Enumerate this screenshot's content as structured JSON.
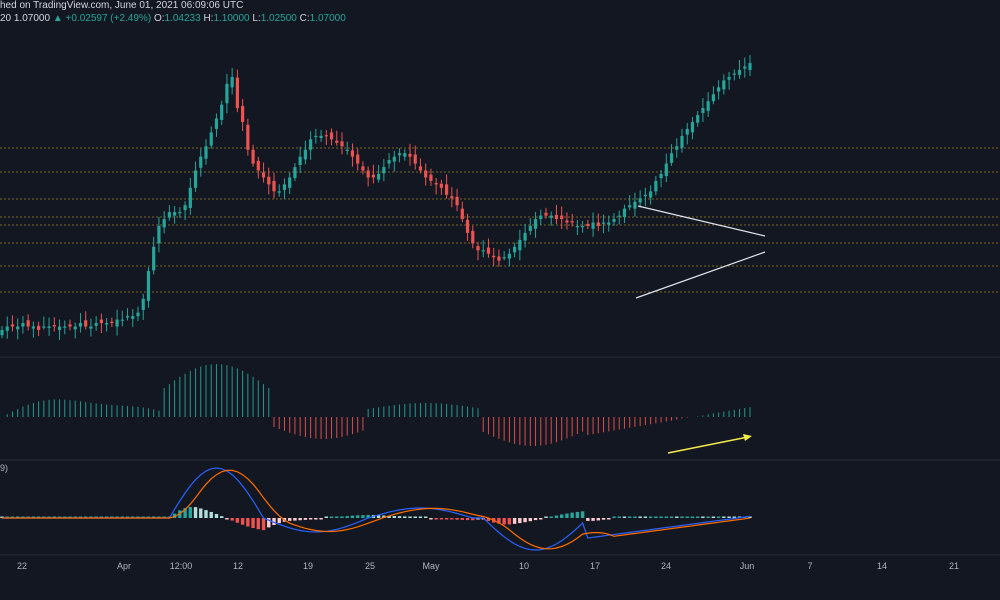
{
  "header": {
    "source_text": "hed on TradingView.com, June 01, 2021 06:09:06 UTC",
    "price_line": {
      "pair_suffix": "20",
      "close": "1.07000",
      "arrow": "▲",
      "change": "+0.02597 (+2.49%)",
      "o_label": "O:",
      "o_value": "1.04233",
      "h_label": "H:",
      "h_value": "1.10000",
      "l_label": "L:",
      "l_value": "1.02500",
      "c_label": "C:",
      "c_value": "1.07000"
    }
  },
  "indicator_pane_label": "9)",
  "x_axis": {
    "labels": [
      "22",
      "Apr",
      "12:00",
      "12",
      "19",
      "25",
      "May",
      "10",
      "17",
      "24",
      "Jun",
      "7",
      "14",
      "21"
    ]
  },
  "colors": {
    "background": "#131722",
    "up": "#26a69a",
    "down": "#ef5350",
    "level_line": "#c8a62a",
    "trendline": "#e0e3eb",
    "arrow": "#f5e94a",
    "macd_line": "#2962ff",
    "signal_line": "#ff6d00",
    "hist_pos_strong": "#26a69a",
    "hist_pos_weak": "#b2dfdb",
    "hist_neg_strong": "#ef5350",
    "hist_neg_weak": "#ffcdd2",
    "osc_pos": "#26a69a",
    "osc_neg": "#ef5350"
  },
  "chart_data": {
    "type": "candlestick",
    "price_series_close": [
      0.3,
      0.31,
      0.31,
      0.31,
      0.32,
      0.31,
      0.31,
      0.3,
      0.31,
      0.31,
      0.31,
      0.31,
      0.31,
      0.31,
      0.31,
      0.32,
      0.31,
      0.31,
      0.32,
      0.32,
      0.32,
      0.32,
      0.33,
      0.33,
      0.34,
      0.34,
      0.35,
      0.39,
      0.47,
      0.54,
      0.6,
      0.62,
      0.64,
      0.64,
      0.64,
      0.66,
      0.71,
      0.76,
      0.8,
      0.83,
      0.87,
      0.91,
      0.95,
      1.01,
      1.03,
      0.94,
      0.9,
      0.82,
      0.78,
      0.76,
      0.74,
      0.72,
      0.7,
      0.7,
      0.72,
      0.74,
      0.77,
      0.8,
      0.82,
      0.85,
      0.86,
      0.86,
      0.86,
      0.85,
      0.84,
      0.83,
      0.82,
      0.8,
      0.78,
      0.76,
      0.74,
      0.74,
      0.75,
      0.77,
      0.79,
      0.8,
      0.81,
      0.81,
      0.8,
      0.78,
      0.76,
      0.74,
      0.73,
      0.72,
      0.71,
      0.69,
      0.68,
      0.66,
      0.62,
      0.58,
      0.55,
      0.53,
      0.53,
      0.52,
      0.51,
      0.5,
      0.51,
      0.52,
      0.54,
      0.56,
      0.58,
      0.6,
      0.62,
      0.63,
      0.63,
      0.63,
      0.62,
      0.62,
      0.61,
      0.61,
      0.6,
      0.6,
      0.6,
      0.61,
      0.6,
      0.61,
      0.61,
      0.62,
      0.63,
      0.65,
      0.66,
      0.67,
      0.68,
      0.69,
      0.7,
      0.73,
      0.75,
      0.78,
      0.81,
      0.83,
      0.86,
      0.88,
      0.9,
      0.92,
      0.94,
      0.96,
      0.98,
      1.0,
      1.02,
      1.03,
      1.04,
      1.05,
      1.06,
      1.07
    ],
    "horizontal_levels_note": "dotted horizontal support/resistance levels",
    "triangle": "converging trendlines drawn on the late May price action",
    "indicators": [
      "oscillator histogram (middle pane)",
      "MACD with signal line and histogram (bottom pane)"
    ]
  }
}
